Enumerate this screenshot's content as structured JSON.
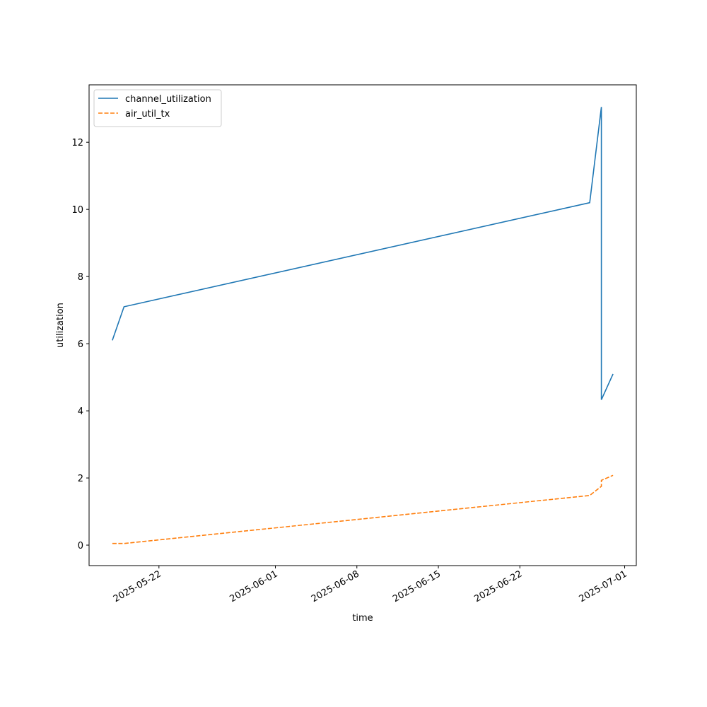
{
  "chart_data": {
    "type": "line",
    "x_label": "time",
    "y_label": "utilization",
    "x": [
      "2025-05-18",
      "2025-05-19",
      "2025-06-28",
      "2025-06-29",
      "2025-06-29",
      "2025-06-30"
    ],
    "series": [
      {
        "name": "channel_utilization",
        "color": "#1f77b4",
        "style": "solid",
        "values": [
          6.1,
          7.1,
          10.2,
          13.05,
          4.33,
          5.1
        ]
      },
      {
        "name": "air_util_tx",
        "color": "#ff7f0e",
        "style": "dashed",
        "values": [
          0.05,
          0.05,
          1.48,
          1.75,
          1.93,
          2.08
        ]
      }
    ],
    "xlim": [
      "2025-05-16",
      "2025-07-02"
    ],
    "xticks": [
      "2025-05-22",
      "2025-06-01",
      "2025-06-08",
      "2025-06-15",
      "2025-06-22",
      "2025-07-01"
    ],
    "ylim": [
      -0.61,
      13.71
    ],
    "yticks": [
      0,
      2,
      4,
      6,
      8,
      10,
      12
    ],
    "legend": "upper left",
    "grid": false
  }
}
